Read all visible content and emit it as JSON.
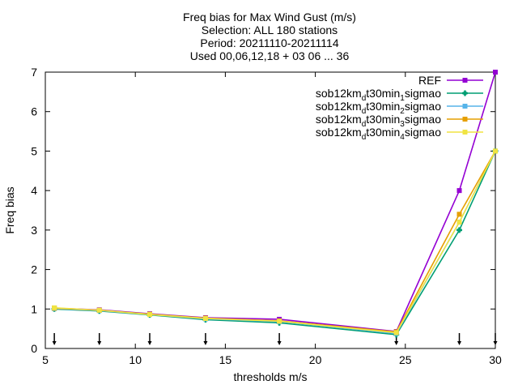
{
  "chart_data": {
    "type": "line",
    "title_lines": [
      "Freq bias  for Max Wind Gust (m/s)",
      "Selection: ALL    180 stations",
      "Period: 20211110-20211114",
      "Used 00,06,12,18 + 03 06 ... 36"
    ],
    "xlabel": "thresholds m/s",
    "ylabel": "Freq bias",
    "xlim": [
      5,
      30
    ],
    "ylim": [
      0,
      7
    ],
    "xticks": [
      5,
      10,
      15,
      20,
      25,
      30
    ],
    "yticks": [
      0,
      1,
      2,
      3,
      4,
      5,
      6,
      7
    ],
    "grid": false,
    "legend_position": "top-right",
    "threshold_markers_x": [
      5.5,
      8,
      10.8,
      13.9,
      18,
      24.5,
      28,
      30
    ],
    "series": [
      {
        "name": "REF",
        "legend_parts": [
          {
            "t": "REF",
            "s": "n"
          }
        ],
        "color": "#9400d3",
        "marker": "square",
        "x": [
          5.5,
          8,
          10.8,
          13.9,
          18,
          24.5,
          28,
          30
        ],
        "y": [
          1.02,
          0.98,
          0.88,
          0.78,
          0.74,
          0.43,
          4.0,
          7.0
        ]
      },
      {
        "name": "sob12km_d t30min_1 sigmao",
        "legend_parts": [
          {
            "t": "sob12km",
            "s": "n"
          },
          {
            "t": "d",
            "s": "sub"
          },
          {
            "t": "t30min",
            "s": "n"
          },
          {
            "t": "1",
            "s": "sub"
          },
          {
            "t": "sigmao",
            "s": "n"
          }
        ],
        "color": "#009e73",
        "marker": "plus",
        "x": [
          5.5,
          8,
          10.8,
          13.9,
          18,
          24.5,
          28,
          30
        ],
        "y": [
          1.0,
          0.95,
          0.85,
          0.73,
          0.65,
          0.35,
          3.0,
          5.0
        ]
      },
      {
        "name": "sob12km_d t30min_2 sigmao",
        "legend_parts": [
          {
            "t": "sob12km",
            "s": "n"
          },
          {
            "t": "d",
            "s": "sub"
          },
          {
            "t": "t30min",
            "s": "n"
          },
          {
            "t": "2",
            "s": "sub"
          },
          {
            "t": "sigmao",
            "s": "n"
          }
        ],
        "color": "#56b4e9",
        "marker": "square",
        "x": [
          5.5,
          8,
          10.8,
          13.9,
          18,
          24.5,
          28,
          30
        ],
        "y": [
          1.01,
          0.96,
          0.86,
          0.75,
          0.68,
          0.38,
          3.2,
          5.0
        ]
      },
      {
        "name": "sob12km_d t30min_3 sigmao",
        "legend_parts": [
          {
            "t": "sob12km",
            "s": "n"
          },
          {
            "t": "d",
            "s": "sub"
          },
          {
            "t": "t30min",
            "s": "n"
          },
          {
            "t": "3",
            "s": "sub"
          },
          {
            "t": "sigmao",
            "s": "n"
          }
        ],
        "color": "#e69f00",
        "marker": "square",
        "x": [
          5.5,
          8,
          10.8,
          13.9,
          18,
          24.5,
          28,
          30
        ],
        "y": [
          1.02,
          0.97,
          0.87,
          0.77,
          0.7,
          0.42,
          3.4,
          5.0
        ]
      },
      {
        "name": "sob12km_d t30min_4 sigmao",
        "legend_parts": [
          {
            "t": "sob12km",
            "s": "n"
          },
          {
            "t": "d",
            "s": "sub"
          },
          {
            "t": "t30min",
            "s": "n"
          },
          {
            "t": "4",
            "s": "sub"
          },
          {
            "t": "sigmao",
            "s": "n"
          }
        ],
        "color": "#f0e442",
        "marker": "square",
        "x": [
          5.5,
          8,
          10.8,
          13.9,
          18,
          24.5,
          28,
          30
        ],
        "y": [
          1.03,
          0.97,
          0.86,
          0.76,
          0.69,
          0.4,
          3.2,
          5.0
        ]
      }
    ]
  }
}
